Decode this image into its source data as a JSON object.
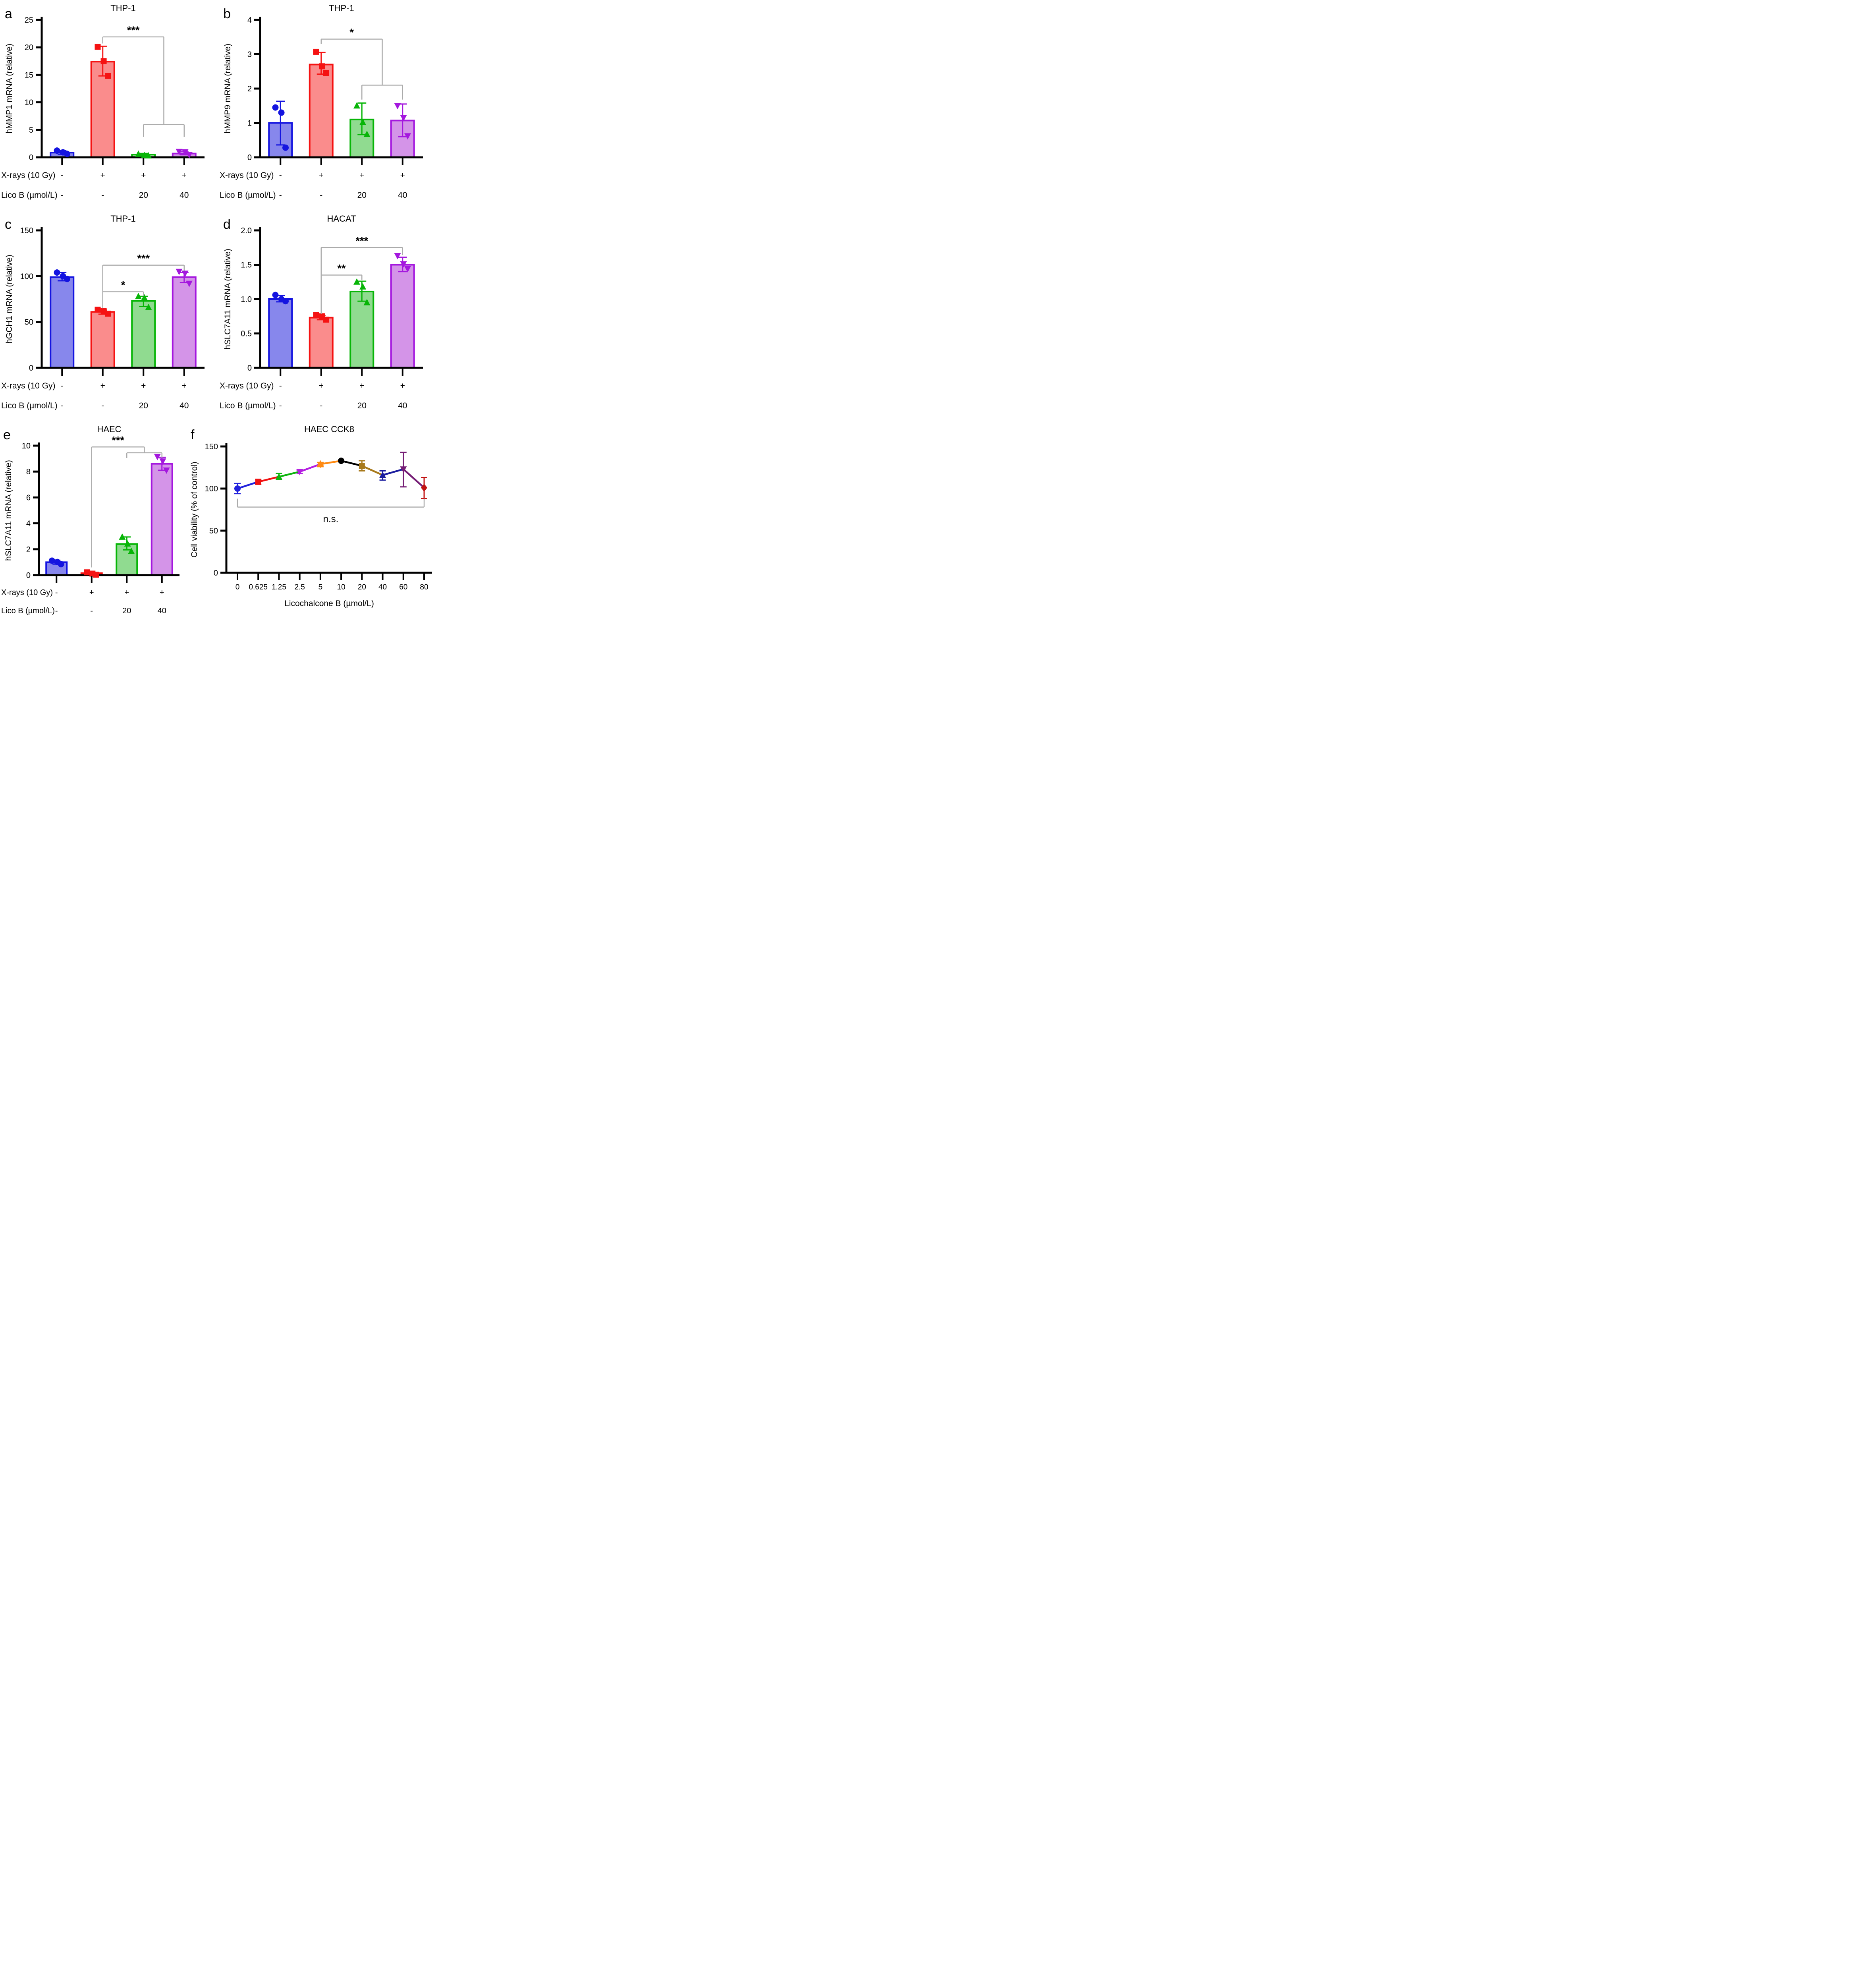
{
  "figure_title": "",
  "style": {
    "background": "#ffffff",
    "axis_color": "#000000",
    "bracket_color": "#ABABAB",
    "group_colors": {
      "control_blue": "#1414E0",
      "xray_red": "#F51212",
      "licob20_green": "#07B507",
      "licob40_purple": "#A417DE"
    }
  },
  "chart_data": [
    {
      "panel": "a",
      "type": "bar",
      "geom": "std",
      "title": "THP-1",
      "ylabel": "hMMP1 mRNA (relative)",
      "ylim": [
        0,
        25
      ],
      "yticks": [
        "0",
        "5",
        "10",
        "15",
        "20",
        "25"
      ],
      "x_rows": [
        {
          "label": "X-rays (10 Gy)",
          "values": [
            "-",
            "+",
            "+",
            "+"
          ]
        },
        {
          "label": "Lico B (µmol/L)",
          "values": [
            "-",
            "-",
            "20",
            "40"
          ]
        }
      ],
      "bars": [
        {
          "name": "control",
          "value": 0.85,
          "err": [
            0.55,
            1.25
          ],
          "points": [
            1.22,
            0.9,
            0.62
          ],
          "marker": "circle",
          "stroke": "#1414E0",
          "fill": "#8787EC"
        },
        {
          "name": "xray",
          "value": 17.4,
          "err": [
            14.8,
            20.2
          ],
          "points": [
            20.1,
            17.5,
            14.8
          ],
          "marker": "square",
          "stroke": "#F51212",
          "fill": "#FA8C8C"
        },
        {
          "name": "xray-licob-20",
          "value": 0.5,
          "err": [
            0.32,
            0.7
          ],
          "points": [
            0.6,
            0.36,
            0.3
          ],
          "marker": "triangle-up",
          "stroke": "#07B507",
          "fill": "#90DB90"
        },
        {
          "name": "xray-licob-40",
          "value": 0.68,
          "err": [
            0.45,
            1.0
          ],
          "points": [
            1.03,
            0.95,
            0.45
          ],
          "marker": "triangle-down",
          "stroke": "#A417DE",
          "fill": "#D494E8"
        }
      ],
      "brackets": [
        {
          "style": "nested",
          "label": "***",
          "from_bar": 1,
          "sub_bars": [
            2,
            3
          ],
          "y_main": 21.9,
          "left_arm_to": 20.7,
          "y_sub": 5.95,
          "sub_arm_to": 3.7
        }
      ]
    },
    {
      "panel": "b",
      "type": "bar",
      "geom": "std",
      "title": "THP-1",
      "ylabel": "hMMP9 mRNA (relative)",
      "ylim": [
        0,
        4
      ],
      "yticks": [
        "0",
        "1",
        "2",
        "3",
        "4"
      ],
      "x_rows": [
        {
          "label": "X-rays (10 Gy)",
          "values": [
            "-",
            "+",
            "+",
            "+"
          ]
        },
        {
          "label": "Lico B (µmol/L)",
          "values": [
            "-",
            "-",
            "20",
            "40"
          ]
        }
      ],
      "bars": [
        {
          "name": "control",
          "value": 1.0,
          "err": [
            0.36,
            1.63
          ],
          "points": [
            1.45,
            1.3,
            0.28
          ],
          "marker": "circle",
          "stroke": "#1414E0",
          "fill": "#8787EC"
        },
        {
          "name": "xray",
          "value": 2.7,
          "err": [
            2.42,
            3.05
          ],
          "points": [
            3.07,
            2.65,
            2.45
          ],
          "marker": "square",
          "stroke": "#F51212",
          "fill": "#FA8C8C"
        },
        {
          "name": "xray-licob-20",
          "value": 1.1,
          "err": [
            0.66,
            1.58
          ],
          "points": [
            1.5,
            1.02,
            0.67
          ],
          "marker": "triangle-up",
          "stroke": "#07B507",
          "fill": "#90DB90"
        },
        {
          "name": "xray-licob-40",
          "value": 1.07,
          "err": [
            0.6,
            1.55
          ],
          "points": [
            1.5,
            1.15,
            0.62
          ],
          "marker": "triangle-down",
          "stroke": "#A417DE",
          "fill": "#D494E8"
        }
      ],
      "brackets": [
        {
          "style": "nested",
          "label": "*",
          "from_bar": 1,
          "sub_bars": [
            2,
            3
          ],
          "y_main": 3.44,
          "left_arm_to": 3.3,
          "y_sub": 2.1,
          "sub_arm_to": 1.68
        }
      ]
    },
    {
      "panel": "c",
      "type": "bar",
      "geom": "std",
      "title": "THP-1",
      "ylabel": "hGCH1 mRNA (relative)",
      "ylim": [
        0,
        150
      ],
      "yticks": [
        "0",
        "50",
        "100",
        "150"
      ],
      "x_rows": [
        {
          "label": "X-rays (10 Gy)",
          "values": [
            "-",
            "+",
            "+",
            "+"
          ]
        },
        {
          "label": "Lico B (µmol/L)",
          "values": [
            "-",
            "-",
            "20",
            "40"
          ]
        }
      ],
      "bars": [
        {
          "name": "control",
          "value": 99,
          "err": [
            95,
            104
          ],
          "points": [
            104,
            100,
            97
          ],
          "marker": "circle",
          "stroke": "#1414E0",
          "fill": "#8787EC"
        },
        {
          "name": "xray",
          "value": 61,
          "err": [
            58.5,
            63
          ],
          "points": [
            63.5,
            62,
            59
          ],
          "marker": "square",
          "stroke": "#F51212",
          "fill": "#FA8C8C"
        },
        {
          "name": "xray-licob-20",
          "value": 73,
          "err": [
            67,
            78
          ],
          "points": [
            78,
            76.5,
            66
          ],
          "marker": "triangle-up",
          "stroke": "#07B507",
          "fill": "#90DB90"
        },
        {
          "name": "xray-licob-40",
          "value": 99,
          "err": [
            93,
            104
          ],
          "points": [
            105,
            103,
            92
          ],
          "marker": "triangle-down",
          "stroke": "#A417DE",
          "fill": "#D494E8"
        }
      ],
      "brackets": [
        {
          "style": "simple",
          "label": "*",
          "bar_left": 1,
          "bar_right": 2,
          "y": 83,
          "left_arm_to": 65,
          "right_arm_to": 78.5
        },
        {
          "style": "simple",
          "label": "***",
          "bar_left": 1,
          "bar_right": 3,
          "y": 112,
          "left_arm_to": 65,
          "right_arm_to": 106
        }
      ]
    },
    {
      "panel": "d",
      "type": "bar",
      "geom": "std",
      "title": "HACAT",
      "ylabel": "hSLC7A11 mRNA (relative)",
      "ylim": [
        0,
        2
      ],
      "yticks": [
        "0",
        "0.5",
        "1.0",
        "1.5",
        "2.0"
      ],
      "x_rows": [
        {
          "label": "X-rays (10 Gy)",
          "values": [
            "-",
            "+",
            "+",
            "+"
          ]
        },
        {
          "label": "Lico B (µmol/L)",
          "values": [
            "-",
            "-",
            "20",
            "40"
          ]
        }
      ],
      "bars": [
        {
          "name": "control",
          "value": 1.0,
          "err": [
            0.96,
            1.05
          ],
          "points": [
            1.06,
            1.0,
            0.97
          ],
          "marker": "circle",
          "stroke": "#1414E0",
          "fill": "#8787EC"
        },
        {
          "name": "xray",
          "value": 0.73,
          "err": [
            0.7,
            0.76
          ],
          "points": [
            0.77,
            0.75,
            0.7
          ],
          "marker": "square",
          "stroke": "#F51212",
          "fill": "#FA8C8C"
        },
        {
          "name": "xray-licob-20",
          "value": 1.11,
          "err": [
            0.97,
            1.26
          ],
          "points": [
            1.25,
            1.18,
            0.95
          ],
          "marker": "triangle-up",
          "stroke": "#07B507",
          "fill": "#90DB90"
        },
        {
          "name": "xray-licob-40",
          "value": 1.5,
          "err": [
            1.4,
            1.61
          ],
          "points": [
            1.63,
            1.51,
            1.44
          ],
          "marker": "triangle-down",
          "stroke": "#A417DE",
          "fill": "#D494E8"
        }
      ],
      "brackets": [
        {
          "style": "simple",
          "label": "**",
          "bar_left": 1,
          "bar_right": 2,
          "y": 1.35,
          "left_arm_to": 0.78,
          "right_arm_to": 1.28
        },
        {
          "style": "simple",
          "label": "***",
          "bar_left": 1,
          "bar_right": 3,
          "y": 1.75,
          "left_arm_to": 0.78,
          "right_arm_to": 1.64
        }
      ]
    },
    {
      "panel": "e",
      "type": "bar",
      "geom": "narrow",
      "title": "HAEC",
      "ylabel": "hSLC7A11 mRNA (relative)",
      "ylim": [
        0,
        10
      ],
      "yticks": [
        "0",
        "2",
        "4",
        "6",
        "8",
        "10"
      ],
      "x_rows": [
        {
          "label": "X-rays (10 Gy)",
          "values": [
            "-",
            "+",
            "+",
            "+"
          ]
        },
        {
          "label": "Lico B (µmol/L)",
          "values": [
            "-",
            "-",
            "20",
            "40"
          ]
        }
      ],
      "bars": [
        {
          "name": "control",
          "value": 1.0,
          "err": [
            0.85,
            1.15
          ],
          "points": [
            1.12,
            1.02,
            0.85
          ],
          "marker": "circle",
          "stroke": "#1414E0",
          "fill": "#8787EC"
        },
        {
          "name": "xray",
          "value": 0.15,
          "err": null,
          "points": [
            0.22,
            0.12,
            0.03
          ],
          "marker": "square",
          "stroke": "#F51212",
          "fill": "#FA8C8C"
        },
        {
          "name": "xray-licob-20",
          "value": 2.4,
          "err": [
            1.95,
            2.95
          ],
          "points": [
            2.95,
            2.42,
            1.85
          ],
          "marker": "triangle-up",
          "stroke": "#07B507",
          "fill": "#90DB90"
        },
        {
          "name": "xray-licob-40",
          "value": 8.6,
          "err": [
            8.1,
            9.1
          ],
          "points": [
            9.15,
            8.8,
            8.1
          ],
          "marker": "triangle-down",
          "stroke": "#A417DE",
          "fill": "#D494E8"
        }
      ],
      "brackets": [
        {
          "style": "nested",
          "label": "***",
          "from_bar": 1,
          "sub_bars": [
            2,
            3
          ],
          "y_main": 9.9,
          "left_arm_to": 0.6,
          "y_sub": 9.45,
          "sub_arm_to": 9.05
        }
      ]
    },
    {
      "panel": "f",
      "type": "line",
      "geom": "line",
      "title": "HAEC CCK8",
      "ylabel": "Cell viability (% of control)",
      "xlabel": "Licochalcone B (µmol/L)",
      "ylim": [
        0,
        150
      ],
      "yticks": [
        "0",
        "50",
        "100",
        "150"
      ],
      "series": [
        {
          "x_label": "0",
          "value": 100,
          "err": [
            94,
            106
          ],
          "marker": "circle",
          "color": "#2121DC"
        },
        {
          "x_label": "0.625",
          "value": 108,
          "err": [
            105,
            111
          ],
          "marker": "square",
          "color": "#F01212"
        },
        {
          "x_label": "1.25",
          "value": 114,
          "err": [
            111,
            118
          ],
          "marker": "triangle-up",
          "color": "#0EB50E"
        },
        {
          "x_label": "2.5",
          "value": 120,
          "err": [
            118,
            122
          ],
          "marker": "triangle-down",
          "color": "#B41EE1"
        },
        {
          "x_label": "5",
          "value": 129,
          "err": [
            126,
            131
          ],
          "marker": "star",
          "color": "#FF8A12"
        },
        {
          "x_label": "10",
          "value": 133,
          "err": null,
          "marker": "circle",
          "color": "#000000"
        },
        {
          "x_label": "20",
          "value": 127,
          "err": [
            121,
            133
          ],
          "marker": "square",
          "color": "#A87A1C"
        },
        {
          "x_label": "40",
          "value": 116,
          "err": [
            110,
            121
          ],
          "marker": "triangle-up",
          "color": "#1A1C9E"
        },
        {
          "x_label": "60",
          "value": 123,
          "err": [
            102,
            143
          ],
          "marker": "triangle-down",
          "color": "#751D75"
        },
        {
          "x_label": "80",
          "value": 101,
          "err": [
            88,
            113
          ],
          "marker": "diamond",
          "color": "#C11212"
        }
      ],
      "ns_bracket": {
        "label": "n.s.",
        "from_index": 0,
        "to_index": 9,
        "y": 78,
        "arm_to": 88
      }
    }
  ]
}
